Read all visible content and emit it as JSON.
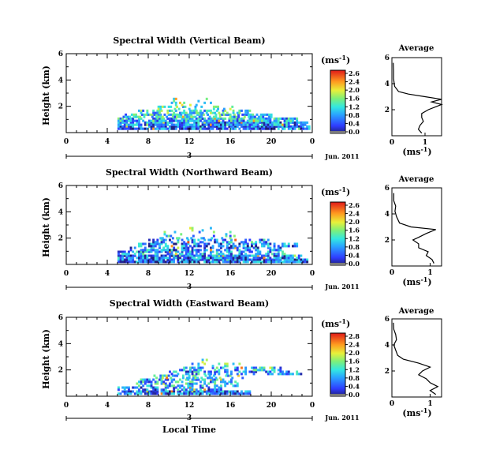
{
  "chart_data": {
    "type": "heatmap",
    "footer_xlabel": "Local Time",
    "avg_xtick_labels": [
      "0",
      "1"
    ],
    "panels": [
      {
        "title": "Spectral Width (Vertical Beam)",
        "ylabel": "Height (km)",
        "unit_label": "(ms",
        "unit_sup": "-1",
        "unit_close": ")",
        "xlim": [
          0,
          24
        ],
        "ylim": [
          0,
          6
        ],
        "xticks": [
          "0",
          "4",
          "8",
          "12",
          "16",
          "20",
          "0"
        ],
        "yticks": [
          "2",
          "4",
          "6"
        ],
        "date_marker": "3",
        "date_label": "Jun. 2011",
        "colorbar_max": 2.8,
        "colorbar_ticks": [
          "2.6",
          "2.4",
          "2.0",
          "1.6",
          "1.2",
          "0.8",
          "0.4",
          "0.0"
        ],
        "avg_title": "Average",
        "avg_xlabel": "(ms",
        "avg_xlabel_sup": "-1",
        "avg_xlabel_close": ")",
        "avg_xlim": [
          0,
          1.5
        ],
        "avg_yticks": [
          "2",
          "4",
          "6"
        ],
        "layer_rows": [
          {
            "h": 0.4,
            "x0": 5.0,
            "x1": 23.8,
            "v": 0.5,
            "d": 0.92
          },
          {
            "h": 0.7,
            "x0": 5.0,
            "x1": 23.6,
            "v": 0.7,
            "d": 0.9
          },
          {
            "h": 1.0,
            "x0": 5.0,
            "x1": 22.5,
            "v": 0.9,
            "d": 0.85
          },
          {
            "h": 1.3,
            "x0": 5.5,
            "x1": 20.0,
            "v": 1.0,
            "d": 0.7
          },
          {
            "h": 1.6,
            "x0": 7.0,
            "x1": 18.0,
            "v": 1.1,
            "d": 0.5
          },
          {
            "h": 1.9,
            "x0": 8.5,
            "x1": 16.5,
            "v": 1.3,
            "d": 0.35
          },
          {
            "h": 2.2,
            "x0": 9.0,
            "x1": 14.5,
            "v": 1.5,
            "d": 0.2
          },
          {
            "h": 2.5,
            "x0": 10.0,
            "x1": 14.0,
            "v": 1.6,
            "d": 0.12
          }
        ],
        "profile": [
          {
            "z": 0.2,
            "w": 0.9
          },
          {
            "z": 0.5,
            "w": 0.8
          },
          {
            "z": 0.8,
            "w": 0.85
          },
          {
            "z": 1.1,
            "w": 0.95
          },
          {
            "z": 1.4,
            "w": 0.9
          },
          {
            "z": 1.7,
            "w": 0.9
          },
          {
            "z": 2.0,
            "w": 1.1
          },
          {
            "z": 2.2,
            "w": 1.3
          },
          {
            "z": 2.4,
            "w": 1.5
          },
          {
            "z": 2.6,
            "w": 1.2
          },
          {
            "z": 2.8,
            "w": 1.5
          },
          {
            "z": 3.0,
            "w": 1.0
          },
          {
            "z": 3.2,
            "w": 0.5
          },
          {
            "z": 3.4,
            "w": 0.2
          },
          {
            "z": 3.8,
            "w": 0.08
          },
          {
            "z": 4.4,
            "w": 0.05
          },
          {
            "z": 5.0,
            "w": 0.05
          },
          {
            "z": 5.6,
            "w": 0.04
          }
        ]
      },
      {
        "title": "Spectral Width (Northward Beam)",
        "ylabel": "Height (km)",
        "unit_label": "(ms",
        "unit_sup": "-1",
        "unit_close": ")",
        "xlim": [
          0,
          24
        ],
        "ylim": [
          0,
          6
        ],
        "xticks": [
          "0",
          "4",
          "8",
          "12",
          "16",
          "20",
          "0"
        ],
        "yticks": [
          "2",
          "4",
          "6"
        ],
        "date_marker": "3",
        "date_label": "Jun. 2011",
        "colorbar_max": 2.8,
        "colorbar_ticks": [
          "2.6",
          "2.4",
          "2.0",
          "1.6",
          "1.2",
          "0.8",
          "0.4",
          "0.0"
        ],
        "avg_title": "Average",
        "avg_xlabel": "(ms",
        "avg_xlabel_sup": "-1",
        "avg_xlabel_close": ")",
        "avg_xlim": [
          0,
          1.3
        ],
        "avg_yticks": [
          "2",
          "4",
          "6"
        ],
        "layer_rows": [
          {
            "h": 0.3,
            "x0": 5.0,
            "x1": 23.5,
            "v": 0.5,
            "d": 0.92
          },
          {
            "h": 0.6,
            "x0": 5.0,
            "x1": 23.0,
            "v": 0.6,
            "d": 0.88
          },
          {
            "h": 0.9,
            "x0": 5.0,
            "x1": 21.5,
            "v": 0.8,
            "d": 0.6
          },
          {
            "h": 1.2,
            "x0": 6.0,
            "x1": 21.0,
            "v": 0.7,
            "d": 0.55
          },
          {
            "h": 1.5,
            "x0": 7.0,
            "x1": 22.5,
            "v": 0.6,
            "d": 0.55
          },
          {
            "h": 1.8,
            "x0": 8.0,
            "x1": 20.0,
            "v": 0.7,
            "d": 0.45
          },
          {
            "h": 2.1,
            "x0": 8.5,
            "x1": 17.0,
            "v": 1.0,
            "d": 0.3
          },
          {
            "h": 2.4,
            "x0": 9.5,
            "x1": 16.0,
            "v": 1.1,
            "d": 0.2
          },
          {
            "h": 2.7,
            "x0": 11.0,
            "x1": 15.0,
            "v": 1.3,
            "d": 0.12
          }
        ],
        "profile": [
          {
            "z": 0.2,
            "w": 1.1
          },
          {
            "z": 0.5,
            "w": 1.05
          },
          {
            "z": 0.8,
            "w": 0.9
          },
          {
            "z": 1.1,
            "w": 0.95
          },
          {
            "z": 1.4,
            "w": 0.7
          },
          {
            "z": 1.7,
            "w": 0.7
          },
          {
            "z": 2.0,
            "w": 0.55
          },
          {
            "z": 2.2,
            "w": 0.7
          },
          {
            "z": 2.5,
            "w": 0.9
          },
          {
            "z": 2.8,
            "w": 1.15
          },
          {
            "z": 3.0,
            "w": 0.5
          },
          {
            "z": 3.3,
            "w": 0.2
          },
          {
            "z": 3.8,
            "w": 0.12
          },
          {
            "z": 4.2,
            "w": 0.08
          },
          {
            "z": 4.6,
            "w": 0.1
          },
          {
            "z": 5.0,
            "w": 0.05
          },
          {
            "z": 5.6,
            "w": 0.05
          }
        ]
      },
      {
        "title": "Spectral Width (Eastward Beam)",
        "ylabel": "Height (km)",
        "unit_label": "(ms",
        "unit_sup": "-1",
        "unit_close": ")",
        "xlim": [
          0,
          24
        ],
        "ylim": [
          0,
          6
        ],
        "xticks": [
          "0",
          "4",
          "8",
          "12",
          "16",
          "20",
          "0"
        ],
        "yticks": [
          "2",
          "4",
          "6"
        ],
        "date_marker": "3",
        "date_label": "Jun. 2011",
        "colorbar_max": 2.8,
        "colorbar_ticks": [
          "2.8",
          "2.4",
          "2.0",
          "1.6",
          "1.2",
          "0.8",
          "0.4",
          "0.0"
        ],
        "avg_title": "Average",
        "avg_xlabel": "(ms",
        "avg_xlabel_sup": "-1",
        "avg_xlabel_close": ")",
        "avg_xlim": [
          0,
          1.3
        ],
        "avg_yticks": [
          "2",
          "4",
          "6"
        ],
        "layer_rows": [
          {
            "h": 0.3,
            "x0": 5.0,
            "x1": 18.0,
            "v": 0.6,
            "d": 0.9
          },
          {
            "h": 0.6,
            "x0": 5.0,
            "x1": 15.0,
            "v": 0.7,
            "d": 0.6
          },
          {
            "h": 0.9,
            "x0": 6.0,
            "x1": 17.0,
            "v": 0.9,
            "d": 0.5
          },
          {
            "h": 1.2,
            "x0": 7.0,
            "x1": 16.5,
            "v": 0.9,
            "d": 0.5
          },
          {
            "h": 1.5,
            "x0": 8.5,
            "x1": 17.5,
            "v": 1.1,
            "d": 0.45
          },
          {
            "h": 1.8,
            "x0": 10.0,
            "x1": 23.0,
            "v": 0.8,
            "d": 0.5
          },
          {
            "h": 2.1,
            "x0": 11.0,
            "x1": 21.0,
            "v": 0.9,
            "d": 0.45
          },
          {
            "h": 2.4,
            "x0": 12.0,
            "x1": 17.0,
            "v": 1.2,
            "d": 0.3
          },
          {
            "h": 2.7,
            "x0": 13.0,
            "x1": 15.0,
            "v": 1.5,
            "d": 0.15
          }
        ],
        "profile": [
          {
            "z": 0.2,
            "w": 1.15
          },
          {
            "z": 0.5,
            "w": 1.0
          },
          {
            "z": 0.8,
            "w": 1.2
          },
          {
            "z": 1.1,
            "w": 1.0
          },
          {
            "z": 1.4,
            "w": 0.9
          },
          {
            "z": 1.7,
            "w": 0.7
          },
          {
            "z": 2.0,
            "w": 0.8
          },
          {
            "z": 2.3,
            "w": 1.0
          },
          {
            "z": 2.6,
            "w": 0.7
          },
          {
            "z": 2.9,
            "w": 0.3
          },
          {
            "z": 3.2,
            "w": 0.15
          },
          {
            "z": 3.6,
            "w": 0.1
          },
          {
            "z": 4.0,
            "w": 0.05
          },
          {
            "z": 4.4,
            "w": 0.12
          },
          {
            "z": 4.8,
            "w": 0.1
          },
          {
            "z": 5.2,
            "w": 0.05
          },
          {
            "z": 5.7,
            "w": 0.04
          }
        ]
      }
    ]
  }
}
